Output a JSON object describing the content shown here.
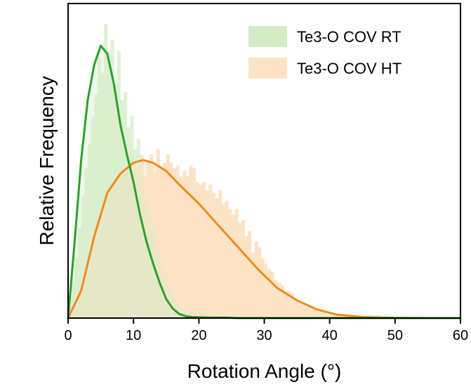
{
  "chart_data": {
    "type": "area",
    "xlabel": "Rotation Angle (°)",
    "ylabel": "Relative Frequency",
    "xlim": [
      0,
      60
    ],
    "ylim": [
      0,
      1.0
    ],
    "xticks": [
      0,
      10,
      20,
      30,
      40,
      50,
      60
    ],
    "grid": false,
    "legend": "top-right",
    "series": [
      {
        "name": "Te3-O COV RT",
        "fill_color": "#d4ecc6",
        "line_color": "#2ca02c",
        "curve": {
          "x": [
            0,
            1,
            2,
            3,
            4,
            5,
            6,
            7,
            8,
            9,
            10,
            11,
            12,
            13,
            14,
            15,
            16,
            17,
            18,
            19,
            20,
            22,
            24,
            26,
            30,
            40,
            60
          ],
          "y": [
            0.0,
            0.28,
            0.58,
            0.8,
            0.93,
            1.0,
            0.97,
            0.86,
            0.71,
            0.6,
            0.5,
            0.38,
            0.28,
            0.2,
            0.13,
            0.07,
            0.035,
            0.015,
            0.007,
            0.004,
            0.003,
            0.002,
            0.002,
            0.0,
            0.0,
            0.0,
            0.0
          ]
        },
        "histogram": {
          "bin_width": 0.5,
          "y": [
            0.06,
            0.14,
            0.22,
            0.33,
            0.45,
            0.55,
            0.64,
            0.74,
            0.82,
            0.96,
            0.9,
            1.08,
            0.98,
            1.02,
            0.86,
            0.98,
            0.8,
            0.83,
            0.7,
            0.74,
            0.62,
            0.66,
            0.54,
            0.46,
            0.43,
            0.34,
            0.31,
            0.24,
            0.2,
            0.16,
            0.12,
            0.1,
            0.07,
            0.06,
            0.04,
            0.03,
            0.02,
            0.02,
            0.01,
            0.01,
            0.01,
            0.0,
            0.0,
            0.0,
            0.0,
            0.0,
            0.0,
            0.0,
            0.0,
            0.0
          ]
        }
      },
      {
        "name": "Te3-O COV HT",
        "fill_color": "#fde3c6",
        "line_color": "#f08a1a",
        "curve": {
          "x": [
            0,
            2,
            4,
            6,
            8,
            10,
            11.5,
            13,
            15,
            17,
            20,
            23,
            26,
            29,
            32,
            35,
            38,
            41,
            45,
            50,
            55,
            60
          ],
          "y": [
            0.0,
            0.1,
            0.3,
            0.46,
            0.53,
            0.57,
            0.58,
            0.57,
            0.54,
            0.49,
            0.42,
            0.34,
            0.26,
            0.18,
            0.11,
            0.065,
            0.032,
            0.013,
            0.004,
            0.001,
            0.0,
            0.0
          ]
        },
        "histogram": {
          "bin_width": 0.5,
          "y": [
            0.01,
            0.02,
            0.04,
            0.06,
            0.09,
            0.12,
            0.16,
            0.2,
            0.26,
            0.3,
            0.36,
            0.4,
            0.44,
            0.46,
            0.5,
            0.48,
            0.52,
            0.54,
            0.58,
            0.6,
            0.55,
            0.56,
            0.6,
            0.52,
            0.58,
            0.6,
            0.54,
            0.62,
            0.55,
            0.57,
            0.6,
            0.57,
            0.55,
            0.56,
            0.52,
            0.54,
            0.52,
            0.56,
            0.55,
            0.5,
            0.49,
            0.5,
            0.47,
            0.49,
            0.46,
            0.44,
            0.47,
            0.42,
            0.43,
            0.4,
            0.38,
            0.4,
            0.35,
            0.36,
            0.3,
            0.32,
            0.24,
            0.28,
            0.26,
            0.22,
            0.2,
            0.18,
            0.17,
            0.14,
            0.13,
            0.12,
            0.1,
            0.1,
            0.09,
            0.07,
            0.06,
            0.05,
            0.04,
            0.04,
            0.03,
            0.03,
            0.02,
            0.02,
            0.02,
            0.01,
            0.01,
            0.01,
            0.01,
            0.01,
            0.01,
            0.0,
            0.0,
            0.0,
            0.01,
            0.0,
            0.0,
            0.0,
            0.01,
            0.0,
            0.01,
            0.0,
            0.0,
            0.0,
            0.0,
            0.0,
            0.0,
            0.0,
            0.0,
            0.0,
            0.0,
            0.0,
            0.0,
            0.0,
            0.0,
            0.0,
            0.0,
            0.0,
            0.0,
            0.0,
            0.0,
            0.0,
            0.0,
            0.0,
            0.0,
            0.0
          ]
        }
      }
    ]
  }
}
